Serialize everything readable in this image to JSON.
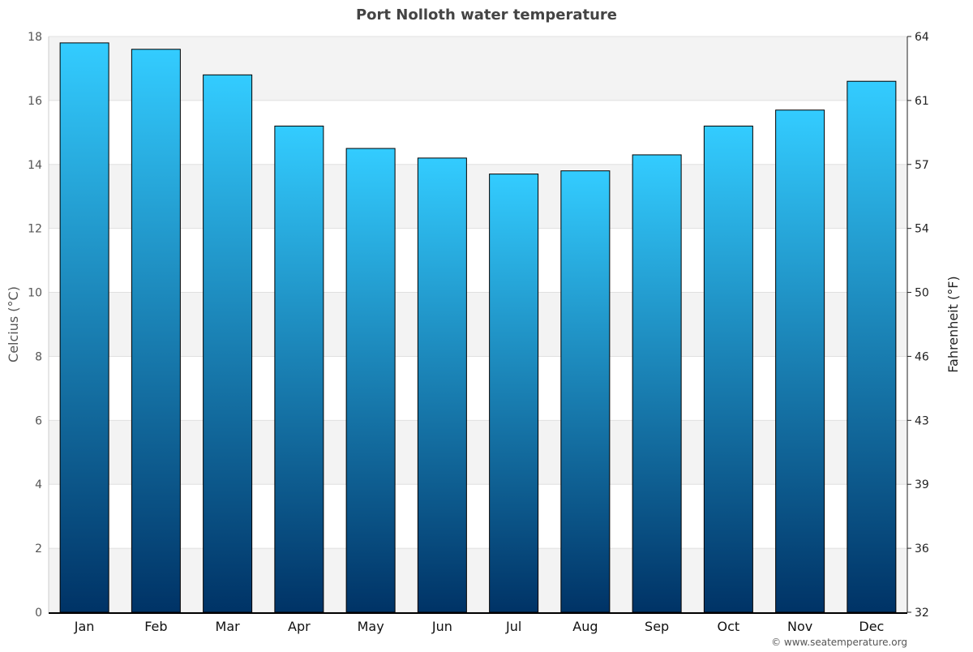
{
  "chart_data": {
    "type": "bar",
    "title": "Port Nolloth water temperature",
    "ylabel": "Celcius (°C)",
    "y2label": "Fahrenheit (°F)",
    "categories": [
      "Jan",
      "Feb",
      "Mar",
      "Apr",
      "May",
      "Jun",
      "Jul",
      "Aug",
      "Sep",
      "Oct",
      "Nov",
      "Dec"
    ],
    "values": [
      17.8,
      17.6,
      16.8,
      15.2,
      14.5,
      14.2,
      13.7,
      13.8,
      14.3,
      15.2,
      15.7,
      16.6
    ],
    "ylim": [
      0,
      18
    ],
    "yticks": [
      "0",
      "2",
      "4",
      "6",
      "8",
      "10",
      "12",
      "14",
      "16",
      "18"
    ],
    "y2ticks": [
      "32",
      "36",
      "39",
      "43",
      "46",
      "50",
      "54",
      "57",
      "61",
      "64"
    ],
    "grid": true,
    "colors": {
      "bar_top": "#33ccff",
      "bar_bottom": "#003366",
      "band": "#f3f3f3"
    }
  },
  "credit": "© www.seatemperature.org"
}
